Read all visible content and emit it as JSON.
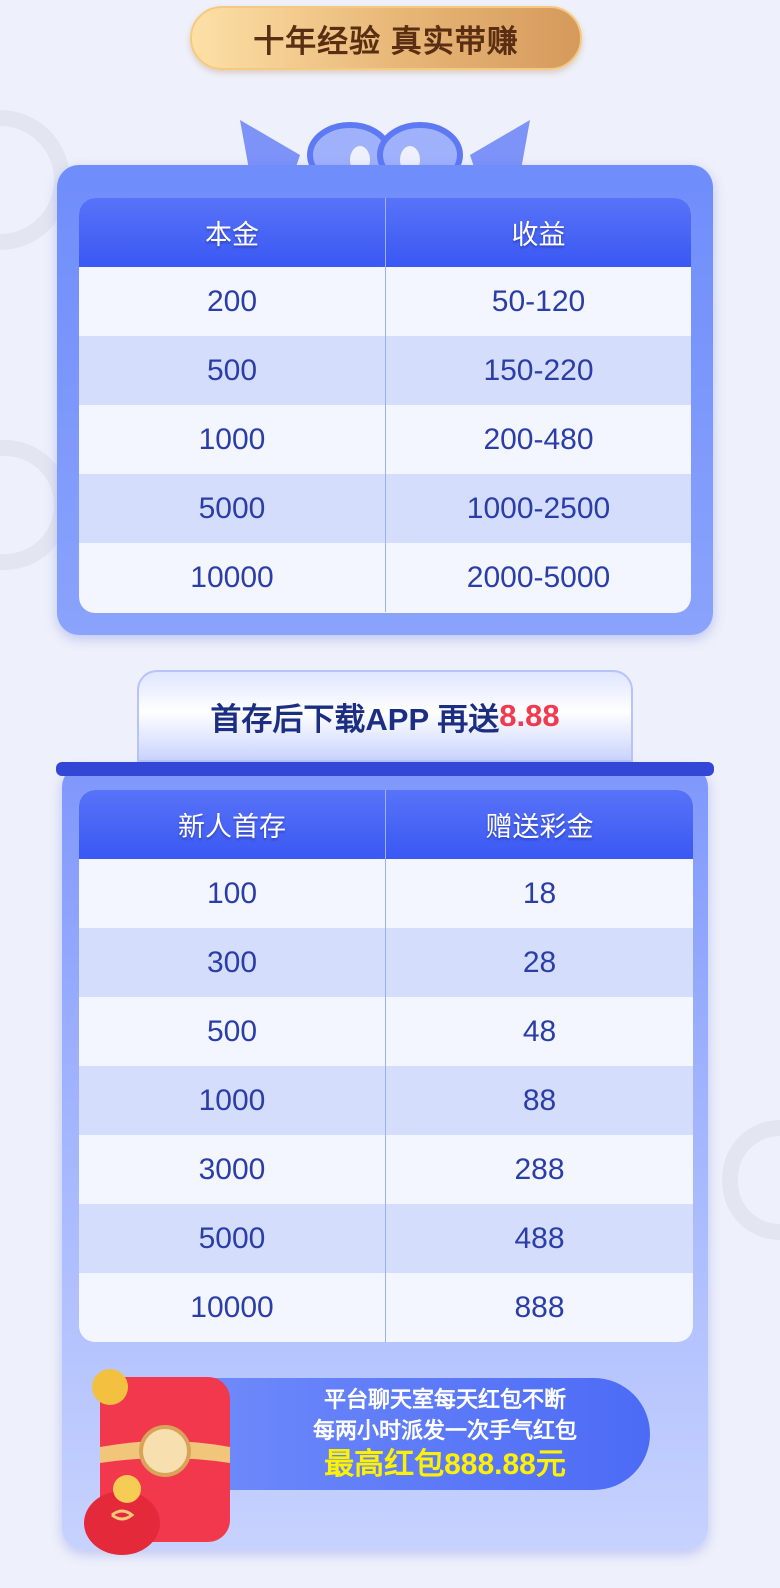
{
  "banner": {
    "title": "十年经验 真实带赚"
  },
  "table1": {
    "headers": [
      "本金",
      "收益"
    ],
    "rows": [
      [
        "200",
        "50-120"
      ],
      [
        "500",
        "150-220"
      ],
      [
        "1000",
        "200-480"
      ],
      [
        "5000",
        "1000-2500"
      ],
      [
        "10000",
        "2000-5000"
      ]
    ]
  },
  "promo": {
    "text": "首存后下载APP 再送",
    "amount": "8.88"
  },
  "table2": {
    "headers": [
      "新人首存",
      "赠送彩金"
    ],
    "rows": [
      [
        "100",
        "18"
      ],
      [
        "300",
        "28"
      ],
      [
        "500",
        "48"
      ],
      [
        "1000",
        "88"
      ],
      [
        "3000",
        "288"
      ],
      [
        "5000",
        "488"
      ],
      [
        "10000",
        "888"
      ]
    ]
  },
  "redpacket": {
    "line1": "平台聊天室每天红包不断",
    "line2": "每两小时派发一次手气红包",
    "line3": "最高红包888.88元"
  },
  "colors": {
    "header_blue": "#3a58f3",
    "text_blue": "#2b3ea8",
    "highlight_red": "#f03a4e",
    "highlight_yellow": "#fff200"
  }
}
